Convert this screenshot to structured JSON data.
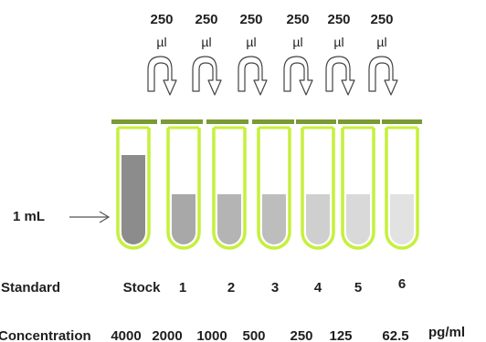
{
  "transfers": [
    {
      "volume": "250",
      "unit": "µl"
    },
    {
      "volume": "250",
      "unit": "µl"
    },
    {
      "volume": "250",
      "unit": "µl"
    },
    {
      "volume": "250",
      "unit": "µl"
    },
    {
      "volume": "250",
      "unit": "µl"
    },
    {
      "volume": "250",
      "unit": "µl"
    }
  ],
  "stock_volume_label": "1 mL",
  "standard_row": {
    "label": "Standard",
    "tubes": [
      "Stock",
      "1",
      "2",
      "3",
      "4",
      "5",
      "6"
    ]
  },
  "concentration_row": {
    "label": "Concentration",
    "values": [
      "4000",
      "2000",
      "1000",
      "500",
      "250",
      "125",
      "62.5"
    ],
    "unit": "pg/ml"
  },
  "colors": {
    "tube_outline": "#c6f03b",
    "cap_bar": "#7a9a35",
    "stock_liquid": "#8c8c8c",
    "liquid_levels": [
      "#8c8c8c",
      "#a8a8a8",
      "#b4b4b4",
      "#bdbdbd",
      "#cfcfcf",
      "#d9d9d9",
      "#e2e2e2"
    ]
  }
}
